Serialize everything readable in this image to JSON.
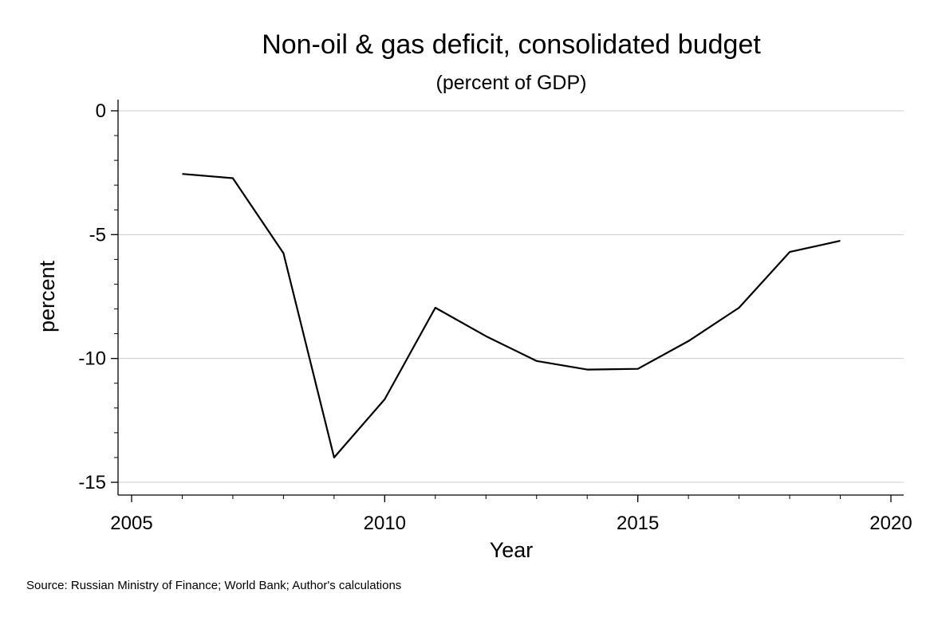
{
  "chart_data": {
    "type": "line",
    "title": "Non-oil & gas deficit, consolidated budget",
    "subtitle": "(percent of GDP)",
    "xlabel": "Year",
    "ylabel": "percent",
    "xlim": [
      2005,
      2020
    ],
    "ylim": [
      -15,
      0
    ],
    "x_ticks": [
      2005,
      2010,
      2015,
      2020
    ],
    "x_tick_labels": [
      "2005",
      "2010",
      "2015",
      "2020"
    ],
    "y_ticks": [
      0,
      -5,
      -10,
      -15
    ],
    "y_tick_labels": [
      "0",
      "-5",
      "-10",
      "-15"
    ],
    "y_minor_step": 1,
    "x_minor_step": 1,
    "grid": "horizontal",
    "legend": "none",
    "line_color": "#000000",
    "grid_color": "#cccccc",
    "series": [
      {
        "x": [
          2006,
          2007,
          2008,
          2009,
          2010,
          2011,
          2012,
          2013,
          2014,
          2015,
          2016,
          2017,
          2018,
          2019
        ],
        "values": [
          -2.55,
          -2.72,
          -5.75,
          -14.0,
          -11.65,
          -7.95,
          -9.1,
          -10.1,
          -10.45,
          -10.42,
          -9.3,
          -7.95,
          -5.7,
          -5.25
        ]
      }
    ],
    "source_note": "Source: Russian Ministry of Finance; World Bank; Author's calculations"
  }
}
